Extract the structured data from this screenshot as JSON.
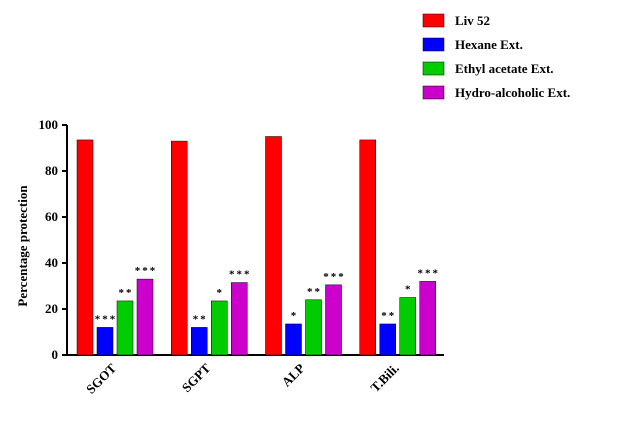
{
  "chart_data": {
    "type": "bar",
    "title": "",
    "xlabel": "",
    "ylabel": "Percentage protection",
    "ylim": [
      0,
      100
    ],
    "yticks": [
      0,
      20,
      40,
      60,
      80,
      100
    ],
    "categories": [
      "SGOT",
      "SGPT",
      "ALP",
      "T.Bili."
    ],
    "series": [
      {
        "name": "Liv 52",
        "color": "#ff0000",
        "values": [
          93.5,
          93,
          95,
          93.5
        ],
        "significance": [
          "",
          "",
          "",
          ""
        ]
      },
      {
        "name": "Hexane Ext.",
        "color": "#0000ff",
        "values": [
          12,
          12,
          13.5,
          13.5
        ],
        "significance": [
          "***",
          "**",
          "*",
          "**"
        ]
      },
      {
        "name": "Ethyl acetate Ext.",
        "color": "#00cc00",
        "values": [
          23.5,
          23.5,
          24,
          25
        ],
        "significance": [
          "**",
          "*",
          "**",
          "*"
        ]
      },
      {
        "name": "Hydro-alcoholic Ext.",
        "color": "#cc00cc",
        "values": [
          33,
          31.5,
          30.5,
          32
        ],
        "significance": [
          "***",
          "***",
          "***",
          "***"
        ]
      }
    ],
    "grid": false,
    "legend_position": "top-right"
  }
}
